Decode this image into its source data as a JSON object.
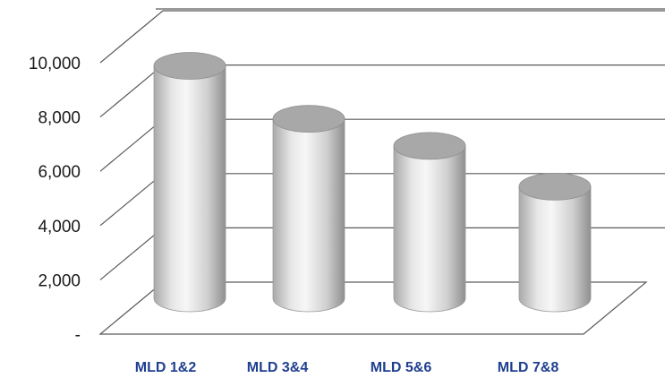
{
  "chart_data": {
    "type": "bar",
    "style": "3d-cylinder",
    "categories": [
      "MLD 1&2",
      "MLD 3&4",
      "MLD 5&6",
      "MLD 7&8"
    ],
    "values": [
      8300,
      6350,
      5350,
      3850
    ],
    "ylim": [
      0,
      10000
    ],
    "yticks": [
      {
        "value": 0,
        "label": "-"
      },
      {
        "value": 2000,
        "label": "2,000"
      },
      {
        "value": 4000,
        "label": "4,000"
      },
      {
        "value": 6000,
        "label": "6,000"
      },
      {
        "value": 8000,
        "label": "8,000"
      },
      {
        "value": 10000,
        "label": "10,000"
      }
    ],
    "grid": true,
    "legend": "none",
    "colors": {
      "bar_light": "#f3f3f3",
      "bar_dark": "#9a9a9a",
      "bar_top": "#a8a8a8",
      "category_label": "#1f3f8f",
      "gridline": "#5a5a5a"
    }
  }
}
